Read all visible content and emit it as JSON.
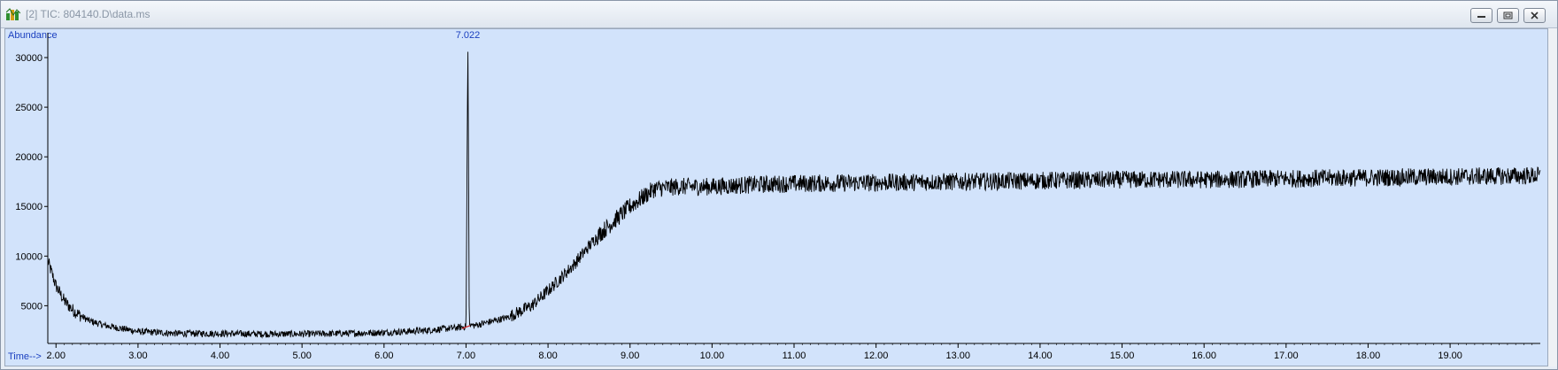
{
  "window": {
    "title": "[2] TIC: 804140.D\\data.ms",
    "icon": "chromatogram-app-icon",
    "controls": [
      "minimize-icon",
      "restore-icon",
      "close-icon"
    ]
  },
  "chart_data": {
    "type": "line",
    "ylabel": "Abundance",
    "xlabel": "Time-->",
    "xlim": [
      1.9,
      20.1
    ],
    "ylim": [
      1200,
      32500
    ],
    "y_ticks": [
      5000,
      10000,
      15000,
      20000,
      25000,
      30000
    ],
    "x_ticks": [
      2.0,
      3.0,
      4.0,
      5.0,
      6.0,
      7.0,
      8.0,
      9.0,
      10.0,
      11.0,
      12.0,
      13.0,
      14.0,
      15.0,
      16.0,
      17.0,
      18.0,
      19.0
    ],
    "x_tick_labels": [
      "2.00",
      "3.00",
      "4.00",
      "5.00",
      "6.00",
      "7.00",
      "8.00",
      "9.00",
      "10.00",
      "11.00",
      "12.00",
      "13.00",
      "14.00",
      "15.00",
      "16.00",
      "17.00",
      "18.00",
      "19.00"
    ],
    "grid": false,
    "series": [
      {
        "x": [
          1.9,
          2.0,
          2.1,
          2.2,
          2.3,
          2.4,
          2.6,
          2.8,
          3.0,
          3.5,
          4.0,
          4.5,
          5.0,
          5.5,
          6.0,
          6.5,
          6.9,
          7.0,
          7.022,
          7.04,
          7.1,
          7.5,
          7.8,
          8.0,
          8.3,
          8.6,
          9.0,
          9.3,
          9.6,
          10.0,
          10.5,
          11.0,
          12.0,
          13.0,
          14.0,
          15.0,
          16.0,
          17.0,
          18.0,
          19.0,
          20.0
        ],
        "y": [
          9500,
          7000,
          5500,
          4600,
          4000,
          3500,
          3000,
          2700,
          2400,
          2200,
          2200,
          2150,
          2150,
          2200,
          2300,
          2500,
          2800,
          2900,
          31800,
          3100,
          3000,
          3800,
          5000,
          6500,
          9000,
          12000,
          15000,
          16800,
          17000,
          17000,
          17200,
          17300,
          17400,
          17500,
          17600,
          17700,
          17700,
          17800,
          17900,
          18000,
          18100
        ]
      }
    ],
    "annotations": [
      {
        "x": 7.022,
        "label": "7.022"
      }
    ]
  }
}
